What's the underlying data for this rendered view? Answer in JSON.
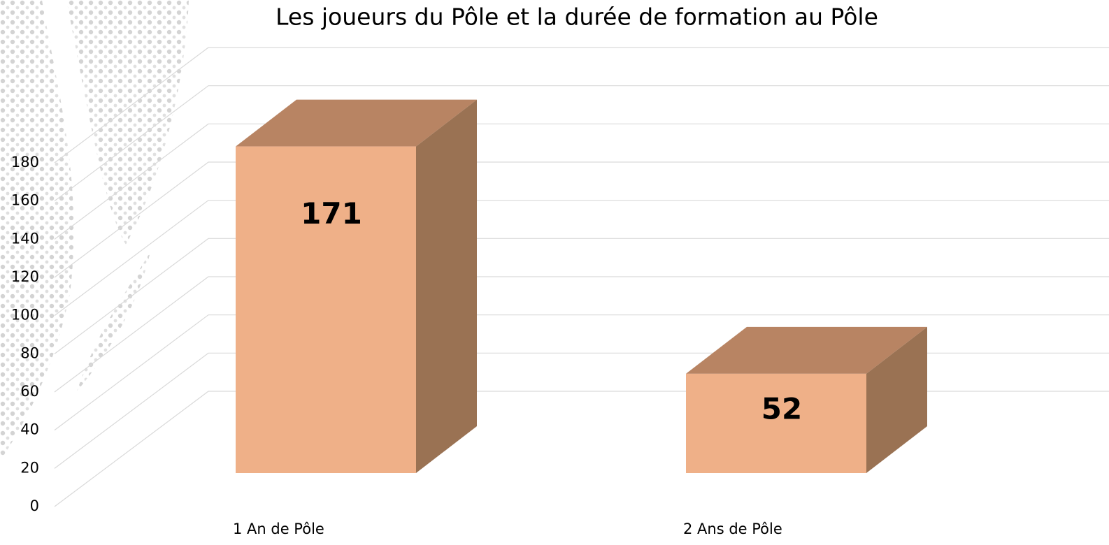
{
  "chart_data": {
    "type": "bar3d",
    "title": "Les joueurs du Pôle et la durée de formation au Pôle",
    "categories": [
      "1 An de Pôle",
      "2 Ans de Pôle"
    ],
    "values": [
      171,
      52
    ],
    "color": "#EFB088",
    "ylim": [
      0,
      180
    ],
    "yticks": [
      0,
      20,
      40,
      60,
      80,
      100,
      120,
      140,
      160,
      180
    ],
    "grid": true
  }
}
